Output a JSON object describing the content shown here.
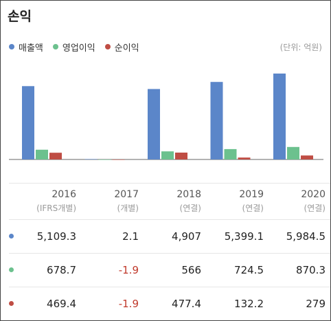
{
  "title": "손익",
  "unit_label": "(단위: 억원)",
  "legend": [
    {
      "label": "매출액",
      "color": "#5b86c9"
    },
    {
      "label": "영업이익",
      "color": "#6cc18e"
    },
    {
      "label": "순이익",
      "color": "#bf4d44"
    }
  ],
  "chart_data": {
    "type": "bar",
    "categories": [
      "2016",
      "2017",
      "2018",
      "2019",
      "2020"
    ],
    "series": [
      {
        "name": "매출액",
        "values": [
          5109.3,
          2.1,
          4907,
          5399.1,
          5984.5
        ]
      },
      {
        "name": "영업이익",
        "values": [
          678.7,
          -1.9,
          566,
          724.5,
          870.3
        ]
      },
      {
        "name": "순이익",
        "values": [
          469.4,
          -1.9,
          477.4,
          132.2,
          279
        ]
      }
    ],
    "colors": [
      "#5b86c9",
      "#6cc18e",
      "#bf4d44"
    ]
  },
  "columns": [
    {
      "year": "2016",
      "sub": "(IFRS개별)"
    },
    {
      "year": "2017",
      "sub": "(개별)"
    },
    {
      "year": "2018",
      "sub": "(연결)"
    },
    {
      "year": "2019",
      "sub": "(연결)"
    },
    {
      "year": "2020",
      "sub": "(연결)"
    }
  ],
  "rows": [
    {
      "color": "#5b86c9",
      "values": [
        "5,109.3",
        "2.1",
        "4,907",
        "5,399.1",
        "5,984.5"
      ]
    },
    {
      "color": "#6cc18e",
      "values": [
        "678.7",
        "-1.9",
        "566",
        "724.5",
        "870.3"
      ]
    },
    {
      "color": "#bf4d44",
      "values": [
        "469.4",
        "-1.9",
        "477.4",
        "132.2",
        "279"
      ]
    }
  ]
}
